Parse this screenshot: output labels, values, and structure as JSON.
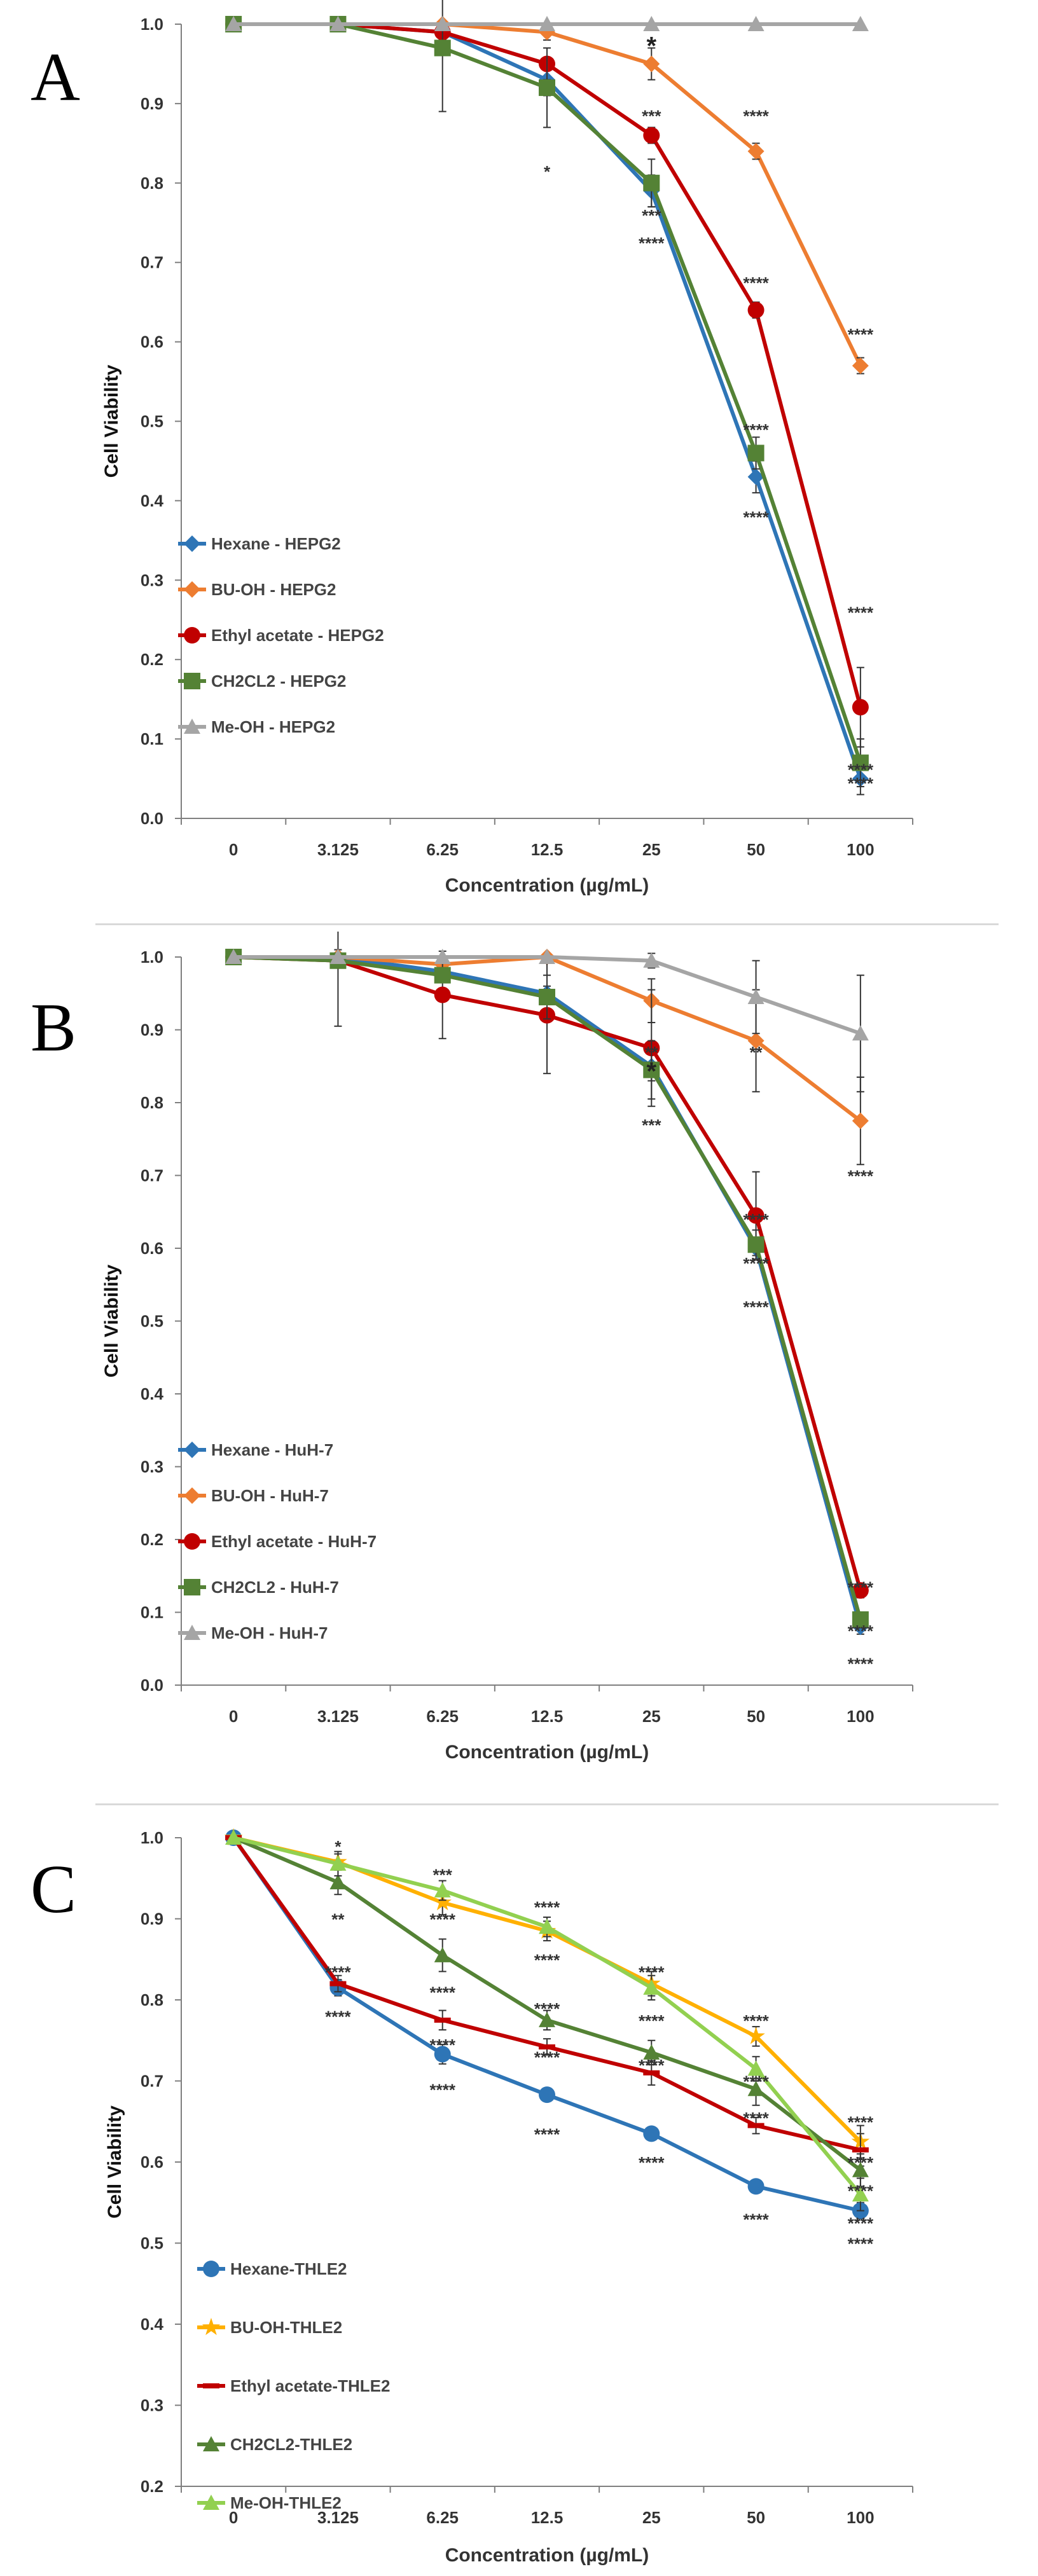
{
  "chart_data": [
    {
      "panel": "A",
      "type": "line",
      "xlabel": "Concentration (µg/mL)",
      "ylabel": "Cell Viability",
      "categories": [
        "0",
        "3.125",
        "6.25",
        "12.5",
        "25",
        "50",
        "100"
      ],
      "yticks": [
        "0.0",
        "0.1",
        "0.2",
        "0.3",
        "0.4",
        "0.5",
        "0.6",
        "0.7",
        "0.8",
        "0.9",
        "1.0"
      ],
      "ylim": [
        0,
        1
      ],
      "legend_position": "bottom-left",
      "series": [
        {
          "name": "Hexane - HEPG2",
          "color": "#2e75b6",
          "marker": "diamond",
          "values": [
            1.0,
            1.0,
            0.99,
            0.93,
            0.79,
            0.43,
            0.05
          ],
          "errors": [
            0,
            0,
            0.01,
            0.02,
            0.02,
            0.02,
            0.02
          ]
        },
        {
          "name": "BU-OH - HEPG2",
          "color": "#ed7d31",
          "marker": "diamond",
          "values": [
            1.0,
            1.0,
            1.0,
            0.99,
            0.95,
            0.84,
            0.57
          ],
          "errors": [
            0,
            0,
            0,
            0.01,
            0.02,
            0.01,
            0.01
          ]
        },
        {
          "name": "Ethyl acetate - HEPG2",
          "color": "#c00000",
          "marker": "circle",
          "values": [
            1.0,
            1.0,
            0.99,
            0.95,
            0.86,
            0.64,
            0.14
          ],
          "errors": [
            0,
            0,
            0.01,
            0.02,
            0.01,
            0.01,
            0.05
          ]
        },
        {
          "name": "CH2CL2  - HEPG2",
          "color": "#548235",
          "marker": "square",
          "values": [
            1.0,
            1.0,
            0.97,
            0.92,
            0.8,
            0.46,
            0.07
          ],
          "errors": [
            0,
            0,
            0.08,
            0.05,
            0.03,
            0.02,
            0.03
          ]
        },
        {
          "name": "Me-OH - HEPG2",
          "color": "#a5a5a5",
          "marker": "triangle",
          "values": [
            1.0,
            1.0,
            1.0,
            1.0,
            1.0,
            1.0,
            1.0
          ],
          "errors": [
            0,
            0,
            0,
            0,
            0,
            0,
            0
          ]
        }
      ],
      "annotations": [
        {
          "text": "*",
          "x": "25",
          "y": 0.97,
          "size": "big"
        },
        {
          "text": "***",
          "x": "25",
          "y": 0.885
        },
        {
          "text": "****",
          "x": "50",
          "y": 0.885
        },
        {
          "text": "****",
          "x": "100",
          "y": 0.61
        },
        {
          "text": "*",
          "x": "12.5",
          "y": 0.815
        },
        {
          "text": "***",
          "x": "25",
          "y": 0.76
        },
        {
          "text": "****",
          "x": "25",
          "y": 0.725
        },
        {
          "text": "****",
          "x": "50",
          "y": 0.675
        },
        {
          "text": "****",
          "x": "50",
          "y": 0.49
        },
        {
          "text": "****",
          "x": "50",
          "y": 0.38
        },
        {
          "text": "****",
          "x": "100",
          "y": 0.26
        },
        {
          "text": "****",
          "x": "100",
          "y": 0.062
        },
        {
          "text": "****",
          "x": "100",
          "y": 0.045
        }
      ]
    },
    {
      "panel": "B",
      "type": "line",
      "xlabel": "Concentration (µg/mL)",
      "ylabel": "Cell Viability",
      "categories": [
        "0",
        "3.125",
        "6.25",
        "12.5",
        "25",
        "50",
        "100"
      ],
      "yticks": [
        "0.0",
        "0.1",
        "0.2",
        "0.3",
        "0.4",
        "0.5",
        "0.6",
        "0.7",
        "0.8",
        "0.9",
        "1.0"
      ],
      "ylim": [
        0,
        1
      ],
      "legend_position": "bottom-left",
      "series": [
        {
          "name": "Hexane - HuH-7",
          "color": "#2e75b6",
          "marker": "diamond",
          "values": [
            1.0,
            1.0,
            0.98,
            0.95,
            0.85,
            0.6,
            0.08
          ],
          "errors": [
            0,
            0.01,
            0.01,
            0.01,
            0.02,
            0.01,
            0.01
          ]
        },
        {
          "name": "BU-OH - HuH-7",
          "color": "#ed7d31",
          "marker": "diamond",
          "values": [
            1.0,
            1.0,
            0.99,
            1.0,
            0.94,
            0.885,
            0.775
          ],
          "errors": [
            0,
            0,
            0.01,
            0,
            0.03,
            0.07,
            0.06
          ]
        },
        {
          "name": "Ethyl acetate - HuH-7",
          "color": "#c00000",
          "marker": "circle",
          "values": [
            1.0,
            0.995,
            0.948,
            0.92,
            0.875,
            0.645,
            0.13
          ],
          "errors": [
            0,
            0.09,
            0.06,
            0.08,
            0.08,
            0.06,
            0.01
          ]
        },
        {
          "name": "CH2CL2  - HuH-7",
          "color": "#548235",
          "marker": "square",
          "values": [
            1.0,
            0.995,
            0.975,
            0.945,
            0.845,
            0.605,
            0.09
          ],
          "errors": [
            0,
            0.01,
            0.01,
            0.03,
            0.04,
            0.02,
            0.01
          ]
        },
        {
          "name": "Me-OH - HuH-7",
          "color": "#a5a5a5",
          "marker": "triangle",
          "values": [
            1.0,
            1.0,
            1.0,
            1.0,
            0.995,
            0.945,
            0.895
          ],
          "errors": [
            0,
            0,
            0,
            0,
            0.01,
            0.05,
            0.08
          ]
        }
      ],
      "annotations": [
        {
          "text": "**",
          "x": "25",
          "y": 0.87
        },
        {
          "text": "**",
          "x": "50",
          "y": 0.87
        },
        {
          "text": "****",
          "x": "100",
          "y": 0.7
        },
        {
          "text": "*",
          "x": "25",
          "y": 0.84,
          "size": "big"
        },
        {
          "text": "***",
          "x": "25",
          "y": 0.77
        },
        {
          "text": "****",
          "x": "50",
          "y": 0.64
        },
        {
          "text": "****",
          "x": "50",
          "y": 0.58
        },
        {
          "text": "****",
          "x": "50",
          "y": 0.52
        },
        {
          "text": "****",
          "x": "100",
          "y": 0.135
        },
        {
          "text": "****",
          "x": "100",
          "y": 0.075
        },
        {
          "text": "****",
          "x": "100",
          "y": 0.03
        }
      ]
    },
    {
      "panel": "C",
      "type": "line",
      "xlabel": "Concentration (µg/mL)",
      "ylabel": "Cell Viability",
      "categories": [
        "0",
        "3.125",
        "6.25",
        "12.5",
        "25",
        "50",
        "100"
      ],
      "yticks": [
        "0.2",
        "0.3",
        "0.4",
        "0.5",
        "0.6",
        "0.7",
        "0.8",
        "0.9",
        "1.0"
      ],
      "ylim": [
        0.2,
        1
      ],
      "legend_position": "bottom-left",
      "series": [
        {
          "name": "Hexane-THLE2",
          "color": "#2e75b6",
          "marker": "circle",
          "values": [
            1.0,
            0.815,
            0.733,
            0.683,
            0.635,
            0.57,
            0.54
          ],
          "errors": [
            0,
            0.01,
            0.012,
            0.006,
            0.005,
            0.008,
            0.01
          ]
        },
        {
          "name": "BU-OH-THLE2",
          "color": "#ffb000",
          "marker": "star",
          "values": [
            1.0,
            0.97,
            0.92,
            0.885,
            0.82,
            0.755,
            0.625
          ],
          "errors": [
            0,
            0.01,
            0.015,
            0.012,
            0.015,
            0.012,
            0.02
          ]
        },
        {
          "name": "Ethyl acetate-THLE2",
          "color": "#c00000",
          "marker": "dash",
          "values": [
            1.0,
            0.82,
            0.775,
            0.742,
            0.71,
            0.645,
            0.615
          ],
          "errors": [
            0,
            0.01,
            0.012,
            0.01,
            0.015,
            0.01,
            0.02
          ]
        },
        {
          "name": "CH2CL2-THLE2",
          "color": "#548235",
          "marker": "triangle",
          "values": [
            1.0,
            0.945,
            0.855,
            0.775,
            0.735,
            0.69,
            0.59
          ],
          "errors": [
            0,
            0.015,
            0.02,
            0.012,
            0.015,
            0.02,
            0.02
          ]
        },
        {
          "name": "Me-OH-THLE2",
          "color": "#92d050",
          "marker": "triangle",
          "values": [
            1.0,
            0.968,
            0.935,
            0.89,
            0.815,
            0.715,
            0.56
          ],
          "errors": [
            0,
            0.015,
            0.012,
            0.012,
            0.015,
            0.015,
            0.02
          ]
        }
      ],
      "annotations": [
        {
          "text": "*",
          "x": "3.125",
          "y": 0.99
        },
        {
          "text": "**",
          "x": "3.125",
          "y": 0.9
        },
        {
          "text": "****",
          "x": "3.125",
          "y": 0.835
        },
        {
          "text": "****",
          "x": "3.125",
          "y": 0.78
        },
        {
          "text": "***",
          "x": "6.25",
          "y": 0.955
        },
        {
          "text": "****",
          "x": "6.25",
          "y": 0.9
        },
        {
          "text": "****",
          "x": "6.25",
          "y": 0.81
        },
        {
          "text": "****",
          "x": "6.25",
          "y": 0.745
        },
        {
          "text": "****",
          "x": "6.25",
          "y": 0.69
        },
        {
          "text": "****",
          "x": "12.5",
          "y": 0.915
        },
        {
          "text": "****",
          "x": "12.5",
          "y": 0.85
        },
        {
          "text": "****",
          "x": "12.5",
          "y": 0.79
        },
        {
          "text": "****",
          "x": "12.5",
          "y": 0.73
        },
        {
          "text": "****",
          "x": "12.5",
          "y": 0.635
        },
        {
          "text": "****",
          "x": "25",
          "y": 0.835
        },
        {
          "text": "****",
          "x": "25",
          "y": 0.775
        },
        {
          "text": "****",
          "x": "25",
          "y": 0.72
        },
        {
          "text": "****",
          "x": "25",
          "y": 0.6
        },
        {
          "text": "****",
          "x": "50",
          "y": 0.775
        },
        {
          "text": "****",
          "x": "50",
          "y": 0.7
        },
        {
          "text": "****",
          "x": "50",
          "y": 0.655
        },
        {
          "text": "****",
          "x": "50",
          "y": 0.53
        },
        {
          "text": "****",
          "x": "100",
          "y": 0.65
        },
        {
          "text": "****",
          "x": "100",
          "y": 0.6
        },
        {
          "text": "****",
          "x": "100",
          "y": 0.565
        },
        {
          "text": "****",
          "x": "100",
          "y": 0.525
        },
        {
          "text": "****",
          "x": "100",
          "y": 0.5
        }
      ]
    }
  ]
}
